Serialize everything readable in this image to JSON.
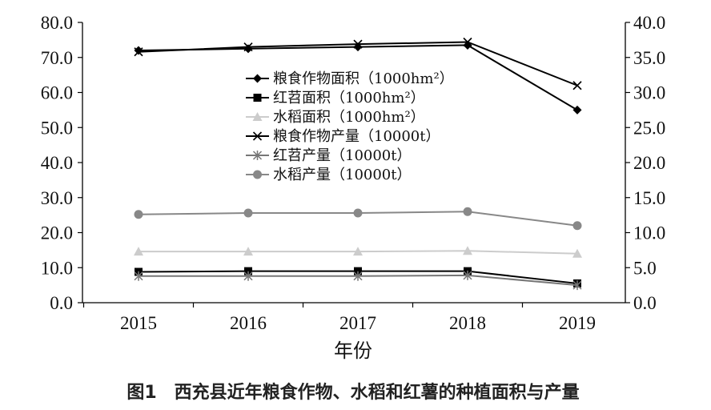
{
  "chart_data": {
    "type": "line",
    "x": [
      "2015",
      "2016",
      "2017",
      "2018",
      "2019"
    ],
    "xlabel": "年份",
    "y_left": {
      "ticks": [
        "0.0",
        "10.0",
        "20.0",
        "30.0",
        "40.0",
        "50.0",
        "60.0",
        "70.0",
        "80.0"
      ],
      "ylim": [
        0,
        80
      ]
    },
    "y_right": {
      "ticks": [
        "0.0",
        "5.0",
        "10.0",
        "15.0",
        "20.0",
        "25.0",
        "30.0",
        "35.0",
        "40.0"
      ],
      "ylim": [
        0,
        40
      ]
    },
    "grid": false,
    "legend_position": "upper-center",
    "series": [
      {
        "name": "粮食作物面积（1000hm²）",
        "values": [
          72.0,
          72.5,
          73.0,
          73.5,
          55.0
        ],
        "axis": "left",
        "marker": "diamond",
        "color": "#000000"
      },
      {
        "name": "红苕面积（1000hm²）",
        "values": [
          8.8,
          9.0,
          9.0,
          9.0,
          5.5
        ],
        "axis": "left",
        "marker": "square",
        "color": "#000000"
      },
      {
        "name": "水稻面积（1000hm²）",
        "values": [
          14.6,
          14.6,
          14.6,
          14.8,
          14.0
        ],
        "axis": "left",
        "marker": "triangle",
        "color": "#cccccc"
      },
      {
        "name": "粮食作物产量（10000t）",
        "values": [
          35.8,
          36.5,
          36.9,
          37.2,
          31.0
        ],
        "axis": "right",
        "marker": "x",
        "color": "#000000"
      },
      {
        "name": "红苕产量（10000t）",
        "values": [
          3.8,
          3.8,
          3.8,
          3.9,
          2.5
        ],
        "axis": "right",
        "marker": "star",
        "color": "#777777"
      },
      {
        "name": "水稻产量（10000t）",
        "values": [
          12.6,
          12.8,
          12.8,
          13.0,
          11.0
        ],
        "axis": "right",
        "marker": "circle",
        "color": "#888888"
      }
    ]
  },
  "caption": "图1　西充县近年粮食作物、水稻和红薯的种植面积与产量"
}
